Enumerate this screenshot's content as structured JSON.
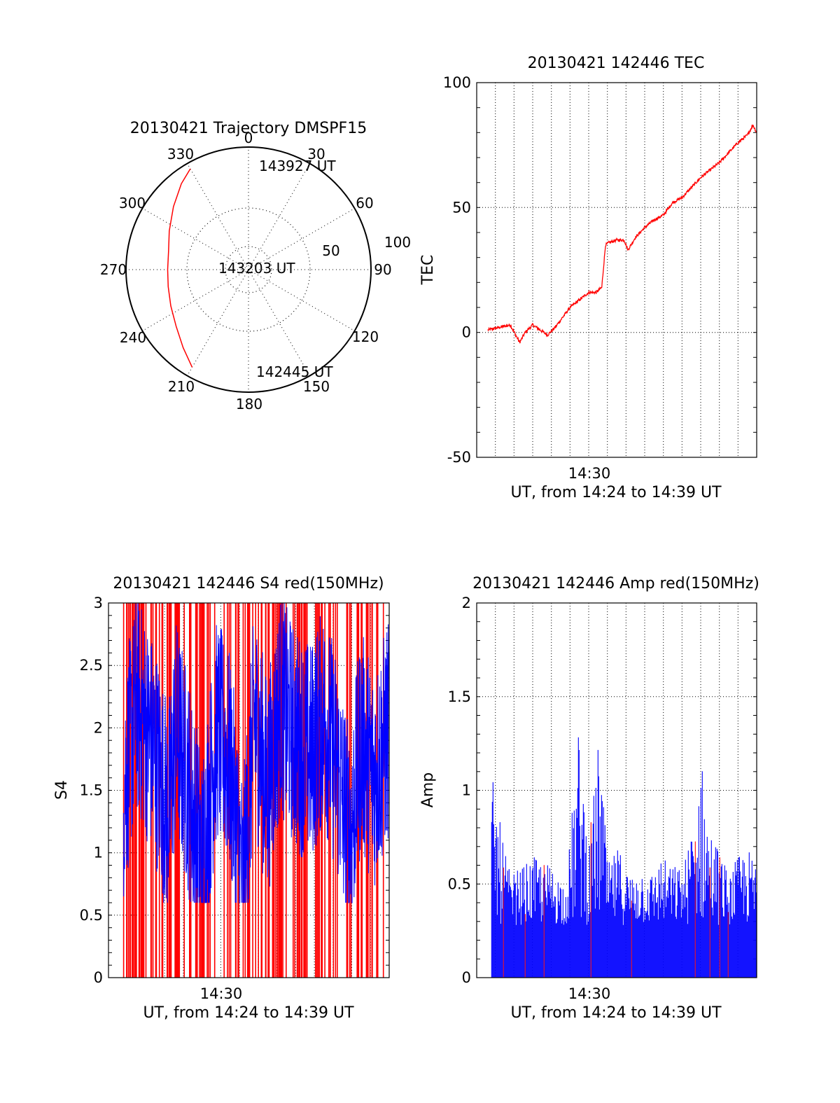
{
  "chart_data": [
    {
      "id": "polar",
      "type": "scatter",
      "title": "20130421 Trajectory DMSPF15",
      "azimuth_labels": [
        "0",
        "30",
        "60",
        "90",
        "120",
        "150",
        "180",
        "210",
        "240",
        "270",
        "300",
        "330"
      ],
      "radial_labels": [
        "50",
        "100"
      ],
      "radial_range": [
        0,
        100
      ],
      "grid": true,
      "series": [
        {
          "color": "#ff0000",
          "points": [
            {
              "az": 210,
              "r": 92
            },
            {
              "az": 220,
              "r": 83
            },
            {
              "az": 232,
              "r": 75
            },
            {
              "az": 245,
              "r": 70
            },
            {
              "az": 258,
              "r": 67
            },
            {
              "az": 270,
              "r": 66
            },
            {
              "az": 283,
              "r": 67
            },
            {
              "az": 296,
              "r": 72
            },
            {
              "az": 310,
              "r": 80
            },
            {
              "az": 322,
              "r": 89
            },
            {
              "az": 330,
              "r": 95
            }
          ]
        }
      ],
      "annotations": [
        "143927 UT",
        "143203 UT",
        "142445 UT"
      ]
    },
    {
      "id": "tec",
      "type": "line",
      "title": "20130421 142446 TEC",
      "ylabel": "TEC",
      "xlabel": "UT, from 14:24 to 14:39 UT",
      "x_tick_labels": [
        "14:30"
      ],
      "xlim": [
        0,
        15
      ],
      "ylim": [
        -50,
        100
      ],
      "yticks": [
        -50,
        0,
        50,
        100
      ],
      "grid": true,
      "series": [
        {
          "color": "#ff0000",
          "x": [
            0.6,
            1.2,
            1.8,
            2.3,
            2.6,
            3.0,
            3.4,
            3.8,
            4.2,
            4.6,
            5.0,
            5.5,
            6.0,
            6.4,
            6.7,
            6.9,
            7.1,
            7.5,
            7.9,
            8.1,
            8.5,
            9.0,
            9.5,
            10.0,
            10.5,
            11.0,
            11.5,
            12.0,
            12.5,
            13.0,
            13.5,
            14.0,
            14.5,
            14.8,
            15.0
          ],
          "values": [
            1,
            2,
            3,
            -4,
            0,
            3,
            1,
            -1,
            2,
            6,
            10,
            13,
            16,
            16,
            18,
            35,
            36,
            37,
            37,
            33,
            38,
            42,
            45,
            47,
            52,
            54,
            58,
            62,
            65,
            68,
            72,
            76,
            79,
            83,
            80
          ]
        }
      ]
    },
    {
      "id": "s4",
      "type": "line",
      "title": "20130421 142446 S4 red(150MHz)",
      "ylabel": "S4",
      "xlabel": "UT, from 14:24 to 14:39 UT",
      "x_tick_labels": [
        "14:30"
      ],
      "xlim": [
        0,
        15
      ],
      "ylim": [
        0,
        3
      ],
      "yticks": [
        0,
        0.5,
        1,
        1.5,
        2,
        2.5,
        3
      ],
      "grid": true,
      "series": [
        {
          "color": "#0000ff",
          "x": [
            0.8,
            1.5,
            2.5,
            3.2,
            3.6,
            4.2,
            5.0,
            5.8,
            6.5,
            7.2,
            7.8,
            8.5,
            9.2,
            10.0,
            10.8,
            11.5,
            12.2,
            12.9,
            13.5,
            14.2,
            15.0
          ],
          "values": [
            1.5,
            2.2,
            1.8,
            1.3,
            2.0,
            1.6,
            0.9,
            2.0,
            1.7,
            0.7,
            2.1,
            1.5,
            2.2,
            1.9,
            1.8,
            2.1,
            1.7,
            1.1,
            1.9,
            1.6,
            2.0
          ]
        }
      ]
    },
    {
      "id": "amp",
      "type": "bar",
      "title": "20130421 142446 Amp red(150MHz)",
      "ylabel": "Amp",
      "xlabel": "UT, from 14:24 to 14:39 UT",
      "x_tick_labels": [
        "14:30"
      ],
      "xlim": [
        0,
        15
      ],
      "ylim": [
        0,
        2
      ],
      "yticks": [
        0,
        0.5,
        1,
        1.5,
        2
      ],
      "grid": true,
      "series": [
        {
          "color": "#0000ff",
          "x": [
            0.9,
            1.3,
            1.8,
            2.5,
            3.2,
            4.0,
            4.8,
            5.5,
            6.0,
            6.6,
            7.0,
            7.6,
            8.2,
            8.8,
            9.3,
            9.9,
            10.5,
            11.1,
            11.7,
            12.0,
            12.4,
            12.7,
            13.0,
            13.5,
            14.0,
            14.5,
            15.0
          ],
          "values": [
            1.05,
            0.8,
            0.55,
            0.6,
            0.65,
            0.6,
            0.5,
            1.38,
            0.7,
            1.35,
            0.6,
            0.7,
            0.55,
            0.6,
            0.55,
            0.65,
            0.6,
            0.6,
            0.9,
            1.22,
            0.85,
            0.75,
            0.7,
            0.55,
            0.65,
            0.7,
            0.6
          ]
        }
      ]
    }
  ]
}
